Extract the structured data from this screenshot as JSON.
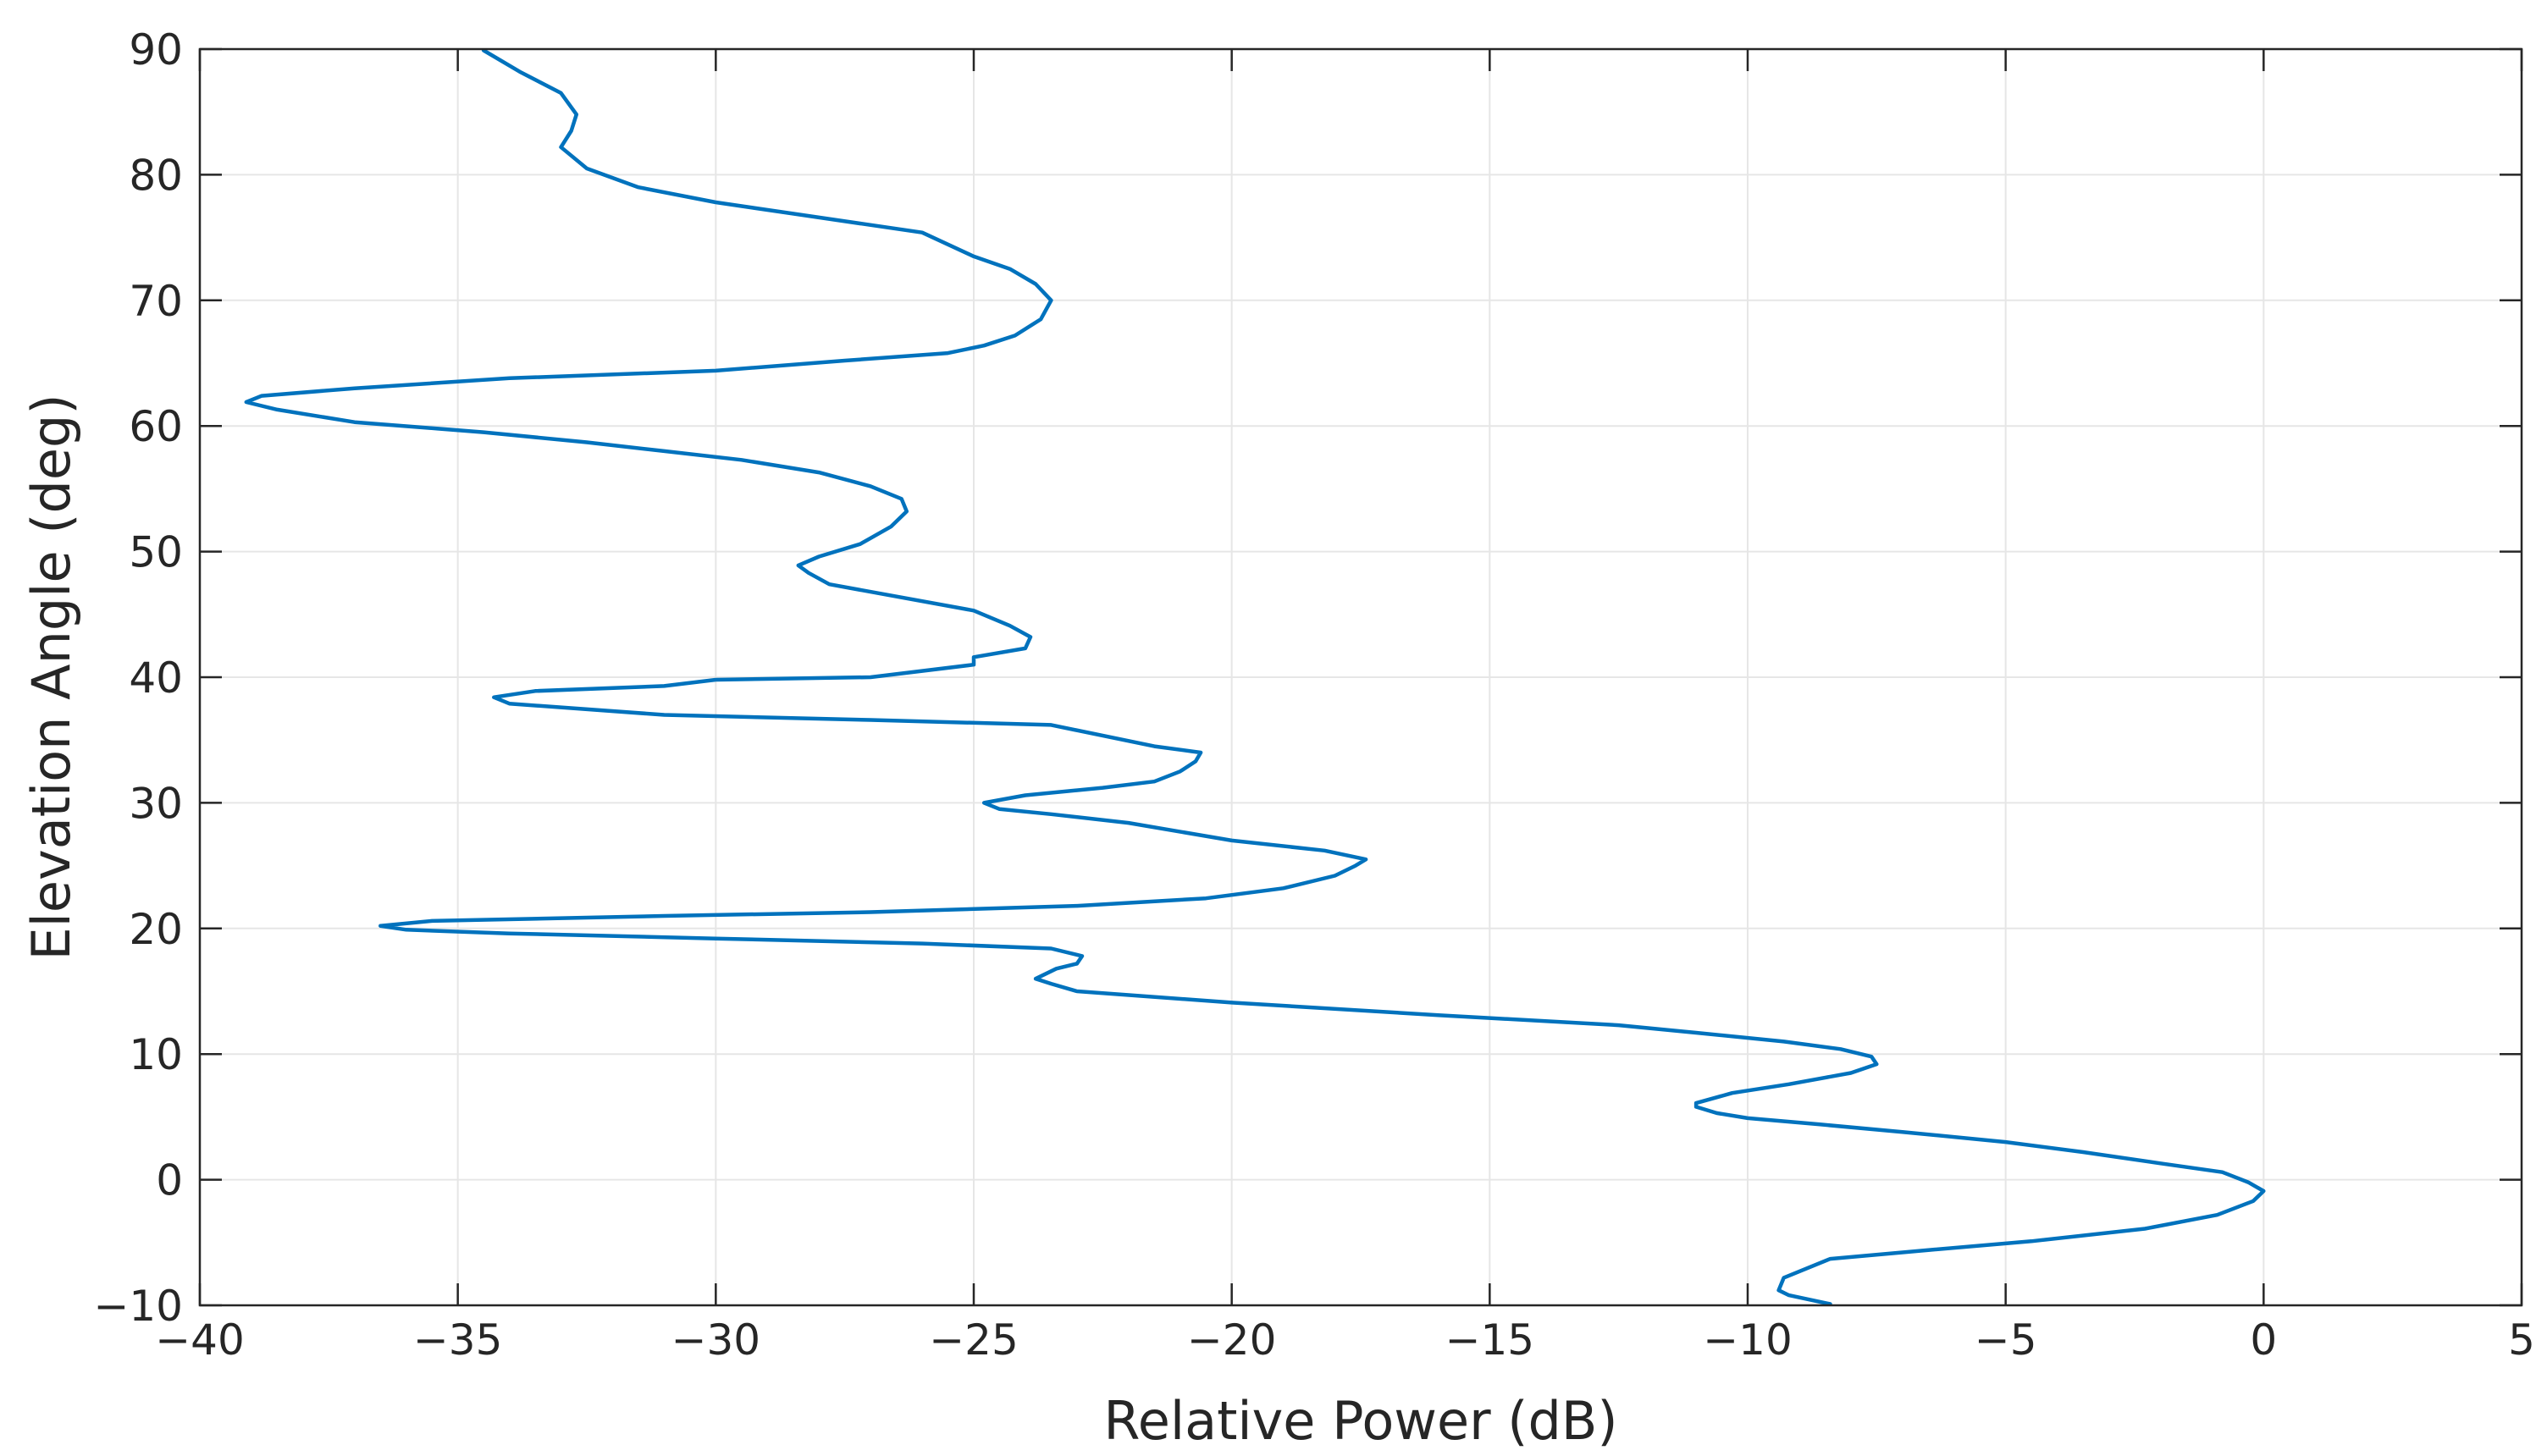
{
  "chart_data": {
    "type": "line",
    "title": "",
    "xlabel": "Relative Power (dB)",
    "ylabel": "Elevation Angle (deg)",
    "xlim": [
      -40,
      5
    ],
    "ylim": [
      -10,
      90
    ],
    "xticks": [
      -40,
      -35,
      -30,
      -25,
      -20,
      -15,
      -10,
      -5,
      0,
      5
    ],
    "yticks": [
      -10,
      0,
      10,
      20,
      30,
      40,
      50,
      60,
      70,
      80,
      90
    ],
    "xtick_labels": [
      "−40",
      "−35",
      "−30",
      "−25",
      "−20",
      "−15",
      "−10",
      "−5",
      "0",
      "5"
    ],
    "ytick_labels": [
      "−10",
      "0",
      "10",
      "20",
      "30",
      "40",
      "50",
      "60",
      "70",
      "80",
      "90"
    ],
    "grid": true,
    "legend": "none",
    "series": [
      {
        "color": "#0072BD",
        "points": [
          [
            -8.4,
            -9.9
          ],
          [
            -9.2,
            -9.2
          ],
          [
            -9.4,
            -8.8
          ],
          [
            -9.3,
            -7.8
          ],
          [
            -8.4,
            -6.3
          ],
          [
            -6.5,
            -5.6
          ],
          [
            -4.5,
            -4.9
          ],
          [
            -2.3,
            -3.9
          ],
          [
            -0.9,
            -2.8
          ],
          [
            -0.2,
            -1.7
          ],
          [
            0.0,
            -0.9
          ],
          [
            -0.3,
            -0.2
          ],
          [
            -0.8,
            0.6
          ],
          [
            -2.0,
            1.3
          ],
          [
            -3.5,
            2.2
          ],
          [
            -5.0,
            3.0
          ],
          [
            -7.0,
            3.8
          ],
          [
            -8.6,
            4.4
          ],
          [
            -10.0,
            4.9
          ],
          [
            -10.6,
            5.3
          ],
          [
            -11.0,
            5.8
          ],
          [
            -11.0,
            6.1
          ],
          [
            -10.3,
            6.9
          ],
          [
            -9.2,
            7.6
          ],
          [
            -8.0,
            8.5
          ],
          [
            -7.5,
            9.2
          ],
          [
            -7.6,
            9.8
          ],
          [
            -8.2,
            10.4
          ],
          [
            -9.3,
            11.0
          ],
          [
            -11.0,
            11.7
          ],
          [
            -12.5,
            12.3
          ],
          [
            -16.0,
            13.1
          ],
          [
            -20.0,
            14.1
          ],
          [
            -23.0,
            15.0
          ],
          [
            -23.5,
            15.6
          ],
          [
            -23.8,
            16.0
          ],
          [
            -23.4,
            16.8
          ],
          [
            -23.0,
            17.2
          ],
          [
            -22.9,
            17.8
          ],
          [
            -23.5,
            18.4
          ],
          [
            -26.0,
            18.8
          ],
          [
            -30.0,
            19.2
          ],
          [
            -34.0,
            19.6
          ],
          [
            -36.0,
            19.9
          ],
          [
            -36.5,
            20.2
          ],
          [
            -35.5,
            20.6
          ],
          [
            -31.0,
            21.0
          ],
          [
            -27.0,
            21.3
          ],
          [
            -23.0,
            21.8
          ],
          [
            -20.5,
            22.4
          ],
          [
            -19.0,
            23.2
          ],
          [
            -18.0,
            24.2
          ],
          [
            -17.6,
            25.0
          ],
          [
            -17.4,
            25.5
          ],
          [
            -18.2,
            26.2
          ],
          [
            -20.0,
            27.0
          ],
          [
            -22.0,
            28.4
          ],
          [
            -23.5,
            29.1
          ],
          [
            -24.5,
            29.5
          ],
          [
            -24.8,
            30.0
          ],
          [
            -24.0,
            30.6
          ],
          [
            -22.5,
            31.2
          ],
          [
            -21.5,
            31.7
          ],
          [
            -21.0,
            32.5
          ],
          [
            -20.7,
            33.3
          ],
          [
            -20.6,
            34.0
          ],
          [
            -21.5,
            34.5
          ],
          [
            -23.5,
            36.2
          ],
          [
            -27.0,
            36.6
          ],
          [
            -31.0,
            37.0
          ],
          [
            -34.0,
            37.9
          ],
          [
            -34.3,
            38.4
          ],
          [
            -33.5,
            38.9
          ],
          [
            -31.0,
            39.3
          ],
          [
            -30.0,
            39.8
          ],
          [
            -27.0,
            40.0
          ],
          [
            -25.0,
            41.0
          ],
          [
            -25.0,
            41.6
          ],
          [
            -24.0,
            42.3
          ],
          [
            -23.9,
            43.2
          ],
          [
            -24.3,
            44.1
          ],
          [
            -25.0,
            45.3
          ],
          [
            -27.8,
            47.4
          ],
          [
            -28.2,
            48.3
          ],
          [
            -28.4,
            48.9
          ],
          [
            -28.0,
            49.6
          ],
          [
            -27.2,
            50.6
          ],
          [
            -26.6,
            52.0
          ],
          [
            -26.3,
            53.2
          ],
          [
            -26.4,
            54.2
          ],
          [
            -27.0,
            55.2
          ],
          [
            -28.0,
            56.3
          ],
          [
            -29.5,
            57.3
          ],
          [
            -31.0,
            58.0
          ],
          [
            -32.5,
            58.7
          ],
          [
            -34.5,
            59.5
          ],
          [
            -37.0,
            60.3
          ],
          [
            -38.5,
            61.3
          ],
          [
            -39.1,
            61.9
          ],
          [
            -38.8,
            62.4
          ],
          [
            -37.0,
            63.0
          ],
          [
            -34.0,
            63.8
          ],
          [
            -30.0,
            64.4
          ],
          [
            -27.5,
            65.2
          ],
          [
            -25.5,
            65.8
          ],
          [
            -24.8,
            66.4
          ],
          [
            -24.2,
            67.2
          ],
          [
            -23.7,
            68.5
          ],
          [
            -23.5,
            70.0
          ],
          [
            -23.8,
            71.3
          ],
          [
            -24.3,
            72.5
          ],
          [
            -25.0,
            73.5
          ],
          [
            -26.0,
            75.4
          ],
          [
            -28.0,
            76.6
          ],
          [
            -30.0,
            77.8
          ],
          [
            -31.5,
            79.0
          ],
          [
            -32.5,
            80.5
          ],
          [
            -33.0,
            82.2
          ],
          [
            -32.8,
            83.5
          ],
          [
            -32.7,
            84.8
          ],
          [
            -33.0,
            86.5
          ],
          [
            -33.8,
            88.2
          ],
          [
            -34.5,
            89.9
          ]
        ]
      }
    ]
  }
}
